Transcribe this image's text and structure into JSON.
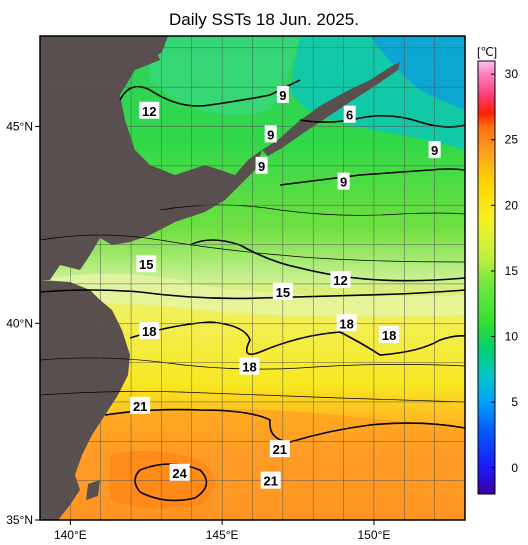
{
  "title": "Daily SSTs 18 Jun. 2025.",
  "colors": {
    "land": "#5a4f4f",
    "frame": "#000000",
    "grid": "#555555"
  },
  "map": {
    "lon_range": [
      139,
      153
    ],
    "lat_range": [
      35,
      47.3
    ],
    "lon_ticks": [
      {
        "value": 140,
        "label": "140°E"
      },
      {
        "value": 145,
        "label": "145°E"
      },
      {
        "value": 150,
        "label": "150°E"
      }
    ],
    "lat_ticks": [
      {
        "value": 45,
        "label": "45°N"
      },
      {
        "value": 40,
        "label": "40°N"
      },
      {
        "value": 35,
        "label": "35°N"
      }
    ],
    "contour_labels": [
      {
        "text": "12",
        "lon": 142.6,
        "lat": 45.4
      },
      {
        "text": "9",
        "lon": 147.0,
        "lat": 45.8
      },
      {
        "text": "9",
        "lon": 146.6,
        "lat": 44.8
      },
      {
        "text": "6",
        "lon": 149.2,
        "lat": 45.3
      },
      {
        "text": "9",
        "lon": 146.3,
        "lat": 44.0
      },
      {
        "text": "9",
        "lon": 152.0,
        "lat": 44.4
      },
      {
        "text": "9",
        "lon": 149.0,
        "lat": 43.6
      },
      {
        "text": "15",
        "lon": 142.5,
        "lat": 41.5
      },
      {
        "text": "12",
        "lon": 148.9,
        "lat": 41.1
      },
      {
        "text": "15",
        "lon": 147.0,
        "lat": 40.8
      },
      {
        "text": "18",
        "lon": 142.6,
        "lat": 39.8
      },
      {
        "text": "18",
        "lon": 149.1,
        "lat": 40.0
      },
      {
        "text": "18",
        "lon": 150.5,
        "lat": 39.7
      },
      {
        "text": "18",
        "lon": 145.9,
        "lat": 38.9
      },
      {
        "text": "21",
        "lon": 142.3,
        "lat": 37.9
      },
      {
        "text": "21",
        "lon": 146.9,
        "lat": 36.8
      },
      {
        "text": "24",
        "lon": 143.6,
        "lat": 36.2
      },
      {
        "text": "21",
        "lon": 146.6,
        "lat": 36.0
      }
    ]
  },
  "colorbar": {
    "unit": "[℃]",
    "min": -2,
    "max": 31,
    "ticks": [
      {
        "value": 30,
        "label": "30"
      },
      {
        "value": 25,
        "label": "25"
      },
      {
        "value": 20,
        "label": "20"
      },
      {
        "value": 15,
        "label": "15"
      },
      {
        "value": 10,
        "label": "10"
      },
      {
        "value": 5,
        "label": "5"
      },
      {
        "value": 0,
        "label": "0"
      }
    ],
    "stops": [
      {
        "value": -2,
        "color": "#3d009c"
      },
      {
        "value": 0,
        "color": "#1a1aff"
      },
      {
        "value": 3,
        "color": "#0060ff"
      },
      {
        "value": 5,
        "color": "#00a0ff"
      },
      {
        "value": 7,
        "color": "#00c8c8"
      },
      {
        "value": 9,
        "color": "#00d070"
      },
      {
        "value": 11,
        "color": "#30e030"
      },
      {
        "value": 14,
        "color": "#70e840"
      },
      {
        "value": 16,
        "color": "#c0f040"
      },
      {
        "value": 19,
        "color": "#f8f020"
      },
      {
        "value": 22,
        "color": "#ffd000"
      },
      {
        "value": 24,
        "color": "#ffa020"
      },
      {
        "value": 26,
        "color": "#ff7010"
      },
      {
        "value": 27,
        "color": "#ff2000"
      },
      {
        "value": 28.5,
        "color": "#ff4080"
      },
      {
        "value": 30,
        "color": "#ff80c0"
      },
      {
        "value": 31,
        "color": "#ffc0f0"
      }
    ]
  }
}
